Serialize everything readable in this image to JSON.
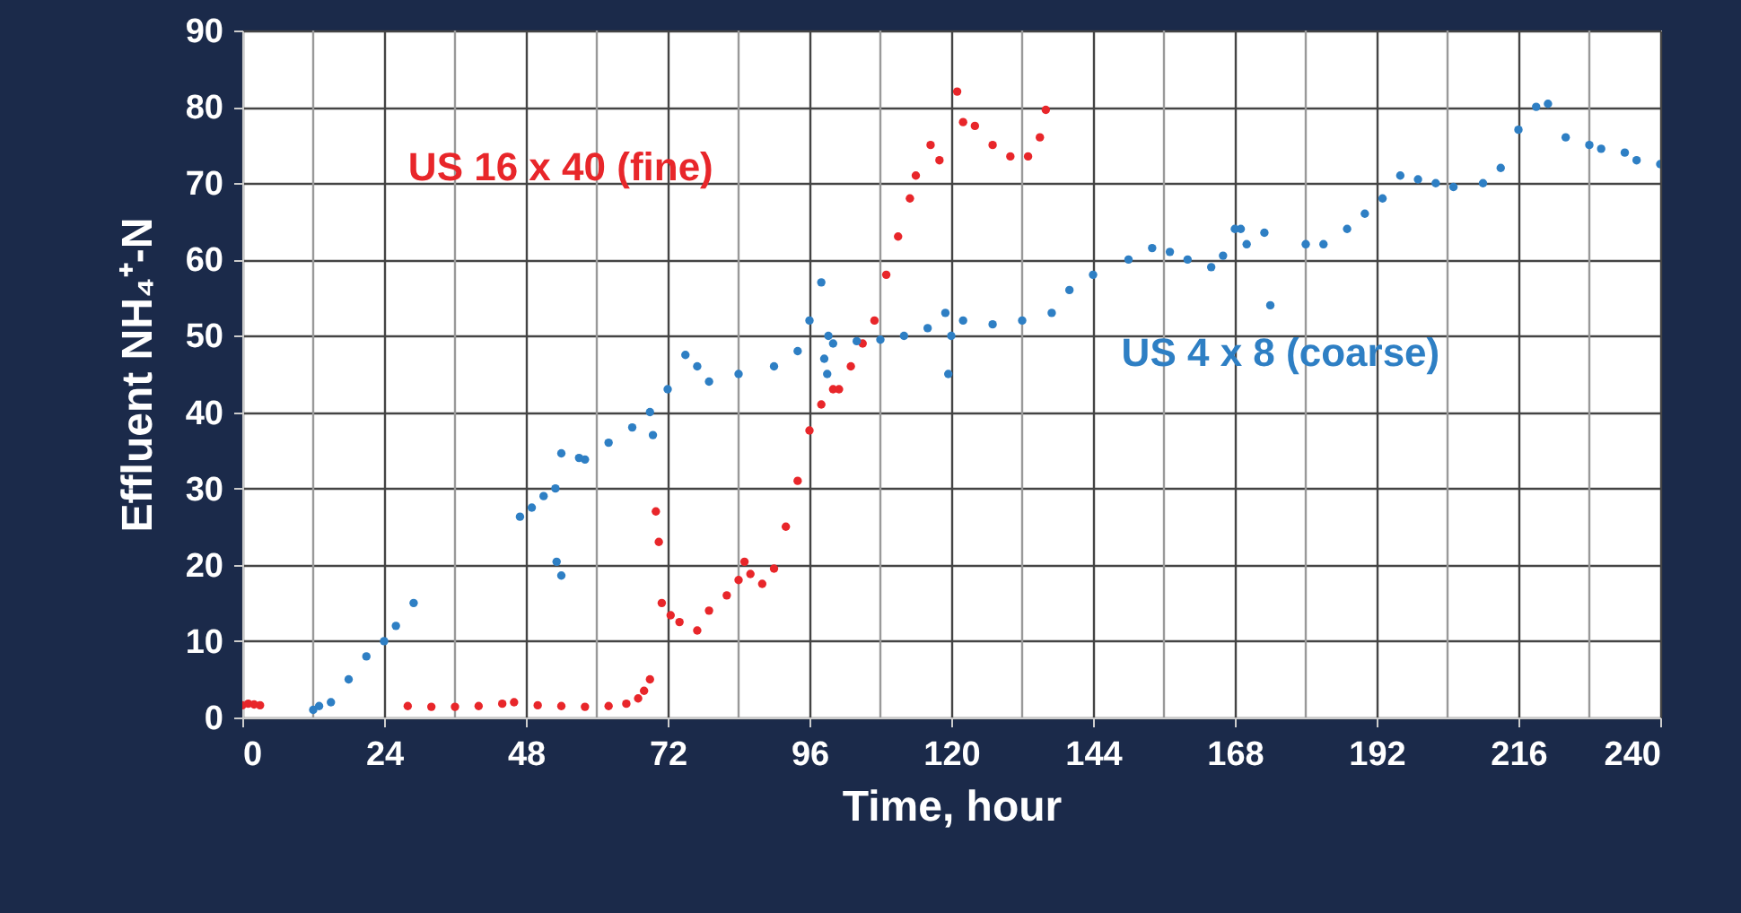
{
  "chart_data": {
    "type": "scatter",
    "xlabel": "Time, hour",
    "ylabel": "Effluent NH₄⁺-N",
    "xlim": [
      0,
      240
    ],
    "ylim": [
      0,
      90
    ],
    "xticks": [
      0,
      {
        "value": 12,
        "label": null
      },
      24,
      {
        "value": 36,
        "label": null
      },
      48,
      {
        "value": 60,
        "label": null
      },
      72,
      {
        "value": 84,
        "label": null
      },
      96,
      {
        "value": 108,
        "label": null
      },
      120,
      {
        "value": 132,
        "label": null
      },
      144,
      {
        "value": 156,
        "label": null
      },
      168,
      {
        "value": 180,
        "label": null
      },
      192,
      {
        "value": 204,
        "label": null
      },
      216,
      {
        "value": 228,
        "label": null
      },
      240
    ],
    "yticks": [
      0,
      10,
      20,
      30,
      40,
      50,
      60,
      70,
      80,
      90
    ],
    "grid": true,
    "marker": "circle",
    "series": [
      {
        "name": "US 16 x 40  (fine)",
        "color": "#e8262a",
        "x": [
          0,
          1,
          2,
          3,
          28,
          32,
          36,
          40,
          44,
          46,
          50,
          54,
          58,
          62,
          65,
          67,
          68,
          69,
          70,
          70.5,
          71,
          72.5,
          74,
          77,
          79,
          82,
          84,
          85,
          86,
          88,
          90,
          92,
          94,
          96,
          98,
          100,
          101,
          103,
          105,
          107,
          109,
          111,
          113,
          114,
          116.5,
          118,
          121,
          122,
          124,
          127,
          130,
          133,
          135,
          136
        ],
        "values": [
          1.6,
          1.8,
          1.7,
          1.6,
          1.5,
          1.4,
          1.4,
          1.5,
          1.8,
          2,
          1.6,
          1.5,
          1.4,
          1.5,
          1.8,
          2.5,
          3.5,
          5,
          27,
          23,
          15,
          13.4,
          12.5,
          11.4,
          14,
          16,
          18,
          20.4,
          18.8,
          17.5,
          19.5,
          25,
          31,
          37.6,
          41,
          43,
          43,
          46,
          49,
          52,
          58,
          63,
          68,
          71,
          75,
          73,
          82,
          78,
          77.5,
          75,
          73.5,
          73.5,
          76,
          79.6
        ]
      },
      {
        "name": "US 4 x 8  (coarse)",
        "color": "#2e7fc4",
        "x": [
          12,
          13,
          15,
          18,
          21,
          24,
          26,
          29,
          47,
          49,
          51,
          53,
          53.2,
          54,
          54,
          57,
          58,
          62,
          66,
          69,
          69.5,
          72,
          75,
          77,
          79,
          84,
          90,
          94,
          96,
          98,
          98.5,
          99,
          99.2,
          100,
          104,
          108,
          112,
          116,
          119,
          119.5,
          120,
          122,
          127,
          132,
          137,
          140,
          144,
          150,
          154,
          157,
          160,
          164,
          166,
          168,
          169,
          170,
          173,
          174,
          180,
          183,
          187,
          190,
          193,
          196,
          199,
          202,
          205,
          210,
          213,
          216,
          219,
          221,
          224,
          228,
          230,
          234,
          236,
          240
        ],
        "values": [
          1,
          1.5,
          2,
          5,
          8,
          10,
          12,
          15,
          26.3,
          27.5,
          29,
          30,
          20.4,
          18.6,
          34.6,
          34,
          33.8,
          36,
          38,
          40,
          37,
          43,
          47.5,
          46,
          44,
          45,
          46,
          48,
          52,
          57,
          47,
          45,
          50,
          49,
          49.3,
          49.5,
          50,
          51,
          53,
          45,
          50,
          52,
          51.5,
          52,
          53,
          56,
          58,
          60,
          61.5,
          61,
          60,
          59,
          60.5,
          64,
          64,
          62,
          63.5,
          54,
          62,
          62,
          64,
          66,
          68,
          71,
          70.5,
          70,
          69.5,
          70,
          72,
          77,
          80,
          80.4,
          76,
          75,
          74.5,
          74,
          73,
          72.5
        ]
      }
    ]
  }
}
